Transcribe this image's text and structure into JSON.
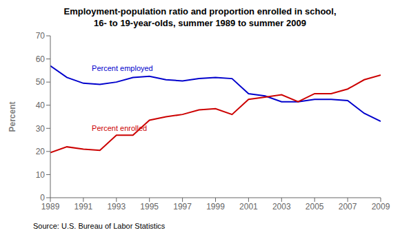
{
  "chart_data": {
    "type": "line",
    "title": "Employment-population ratio and proportion enrolled in school,",
    "subtitle": "16- to 19-year-olds, summer 1989 to summer 2009",
    "y_label": "Percent",
    "source": "Source: U.S. Bureau of Labor Statistics",
    "x": [
      1989,
      1990,
      1991,
      1992,
      1993,
      1994,
      1995,
      1996,
      1997,
      1998,
      1999,
      2000,
      2001,
      2002,
      2003,
      2004,
      2005,
      2006,
      2007,
      2008,
      2009
    ],
    "series": [
      {
        "color": "#0000CC",
        "values": [
          57,
          52,
          49.5,
          49,
          50,
          52,
          52.5,
          51,
          50.5,
          51.5,
          52,
          51.5,
          45,
          44,
          41.5,
          41.5,
          42.5,
          42.5,
          42,
          36.5,
          33
        ]
      },
      {
        "color": "#CC0000",
        "values": [
          19.5,
          22,
          21,
          20.5,
          27,
          27,
          33.5,
          35,
          36,
          38,
          38.5,
          36,
          42.5,
          43.5,
          44.5,
          41.5,
          45,
          45,
          47,
          51,
          53
        ]
      }
    ],
    "annotations": [
      {
        "text": "Percent employed",
        "x": 1991.3,
        "y": 56,
        "color": "#0000CC"
      },
      {
        "text": "Percent enrolled",
        "x": 1991.3,
        "y": 30,
        "color": "#CC0000"
      }
    ],
    "xlim": [
      1989,
      2009
    ],
    "xticks": [
      1989,
      1991,
      1993,
      1995,
      1997,
      1999,
      2001,
      2003,
      2005,
      2007,
      2009
    ],
    "ylim": [
      0,
      70
    ],
    "yticks": [
      0,
      10,
      20,
      30,
      40,
      50,
      60,
      70
    ],
    "grid": false
  }
}
